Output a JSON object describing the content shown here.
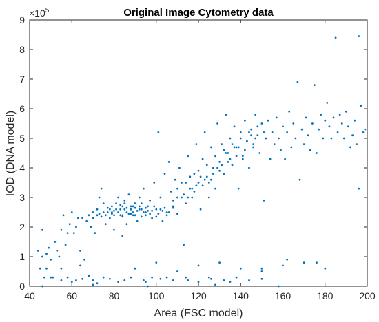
{
  "chart_data": {
    "type": "scatter",
    "title": "Original Image Cytometry data",
    "xlabel": "Area (FSC model)",
    "ylabel": "IOD (DNA model)",
    "xlim": [
      40,
      200
    ],
    "ylim": [
      0,
      900000
    ],
    "xticks": [
      40,
      60,
      80,
      100,
      120,
      140,
      160,
      180,
      200
    ],
    "yticks": [
      0,
      1,
      2,
      3,
      4,
      5,
      6,
      7,
      8,
      9
    ],
    "ytick_multiplier": "×10",
    "ytick_exponent": "5",
    "grid": false,
    "marker_color": "#0072BD",
    "series": [
      {
        "points": [
          [
            44,
            120000
          ],
          [
            45,
            60000
          ],
          [
            46,
            100000
          ],
          [
            46,
            190000
          ],
          [
            47,
            30000
          ],
          [
            48,
            110000
          ],
          [
            48,
            60000
          ],
          [
            49,
            130000
          ],
          [
            50,
            90000
          ],
          [
            51,
            30000
          ],
          [
            52,
            150000
          ],
          [
            53,
            120000
          ],
          [
            54,
            100000
          ],
          [
            55,
            60000
          ],
          [
            55,
            190000
          ],
          [
            56,
            240000
          ],
          [
            57,
            140000
          ],
          [
            58,
            180000
          ],
          [
            59,
            210000
          ],
          [
            60,
            250000
          ],
          [
            61,
            180000
          ],
          [
            62,
            200000
          ],
          [
            63,
            230000
          ],
          [
            64,
            120000
          ],
          [
            65,
            230000
          ],
          [
            66,
            90000
          ],
          [
            67,
            220000
          ],
          [
            68,
            240000
          ],
          [
            69,
            200000
          ],
          [
            70,
            230000
          ],
          [
            71,
            180000
          ],
          [
            72,
            260000
          ],
          [
            73,
            300000
          ],
          [
            74,
            330000
          ],
          [
            75,
            280000
          ],
          [
            76,
            210000
          ],
          [
            77,
            250000
          ],
          [
            78,
            230000
          ],
          [
            79,
            270000
          ],
          [
            80,
            190000
          ],
          [
            81,
            280000
          ],
          [
            82,
            300000
          ],
          [
            83,
            260000
          ],
          [
            84,
            240000
          ],
          [
            85,
            290000
          ],
          [
            86,
            210000
          ],
          [
            87,
            310000
          ],
          [
            88,
            270000
          ],
          [
            89,
            250000
          ],
          [
            90,
            280000
          ],
          [
            91,
            220000
          ],
          [
            92,
            300000
          ],
          [
            93,
            260000
          ],
          [
            94,
            330000
          ],
          [
            95,
            240000
          ],
          [
            96,
            270000
          ],
          [
            97,
            290000
          ],
          [
            98,
            230000
          ],
          [
            99,
            350000
          ],
          [
            100,
            260000
          ],
          [
            101,
            520000
          ],
          [
            102,
            300000
          ],
          [
            103,
            220000
          ],
          [
            104,
            380000
          ],
          [
            105,
            250000
          ],
          [
            106,
            420000
          ],
          [
            107,
            320000
          ],
          [
            108,
            270000
          ],
          [
            109,
            360000
          ],
          [
            110,
            300000
          ],
          [
            111,
            400000
          ],
          [
            112,
            350000
          ],
          [
            113,
            140000
          ],
          [
            114,
            280000
          ],
          [
            115,
            440000
          ],
          [
            116,
            330000
          ],
          [
            117,
            300000
          ],
          [
            118,
            380000
          ],
          [
            119,
            480000
          ],
          [
            120,
            350000
          ],
          [
            121,
            260000
          ],
          [
            122,
            430000
          ],
          [
            123,
            520000
          ],
          [
            124,
            370000
          ],
          [
            125,
            300000
          ],
          [
            126,
            470000
          ],
          [
            127,
            400000
          ],
          [
            128,
            330000
          ],
          [
            129,
            550000
          ],
          [
            130,
            420000
          ],
          [
            131,
            480000
          ],
          [
            132,
            380000
          ],
          [
            133,
            580000
          ],
          [
            134,
            450000
          ],
          [
            135,
            500000
          ],
          [
            136,
            410000
          ],
          [
            137,
            540000
          ],
          [
            138,
            470000
          ],
          [
            139,
            330000
          ],
          [
            140,
            520000
          ],
          [
            141,
            440000
          ],
          [
            142,
            560000
          ],
          [
            143,
            490000
          ],
          [
            144,
            400000
          ],
          [
            145,
            530000
          ],
          [
            146,
            470000
          ],
          [
            147,
            580000
          ],
          [
            148,
            510000
          ],
          [
            149,
            450000
          ],
          [
            150,
            550000
          ],
          [
            151,
            290000
          ],
          [
            152,
            500000
          ],
          [
            153,
            560000
          ],
          [
            154,
            430000
          ],
          [
            155,
            520000
          ],
          [
            156,
            480000
          ],
          [
            157,
            570000
          ],
          [
            158,
            500000
          ],
          [
            159,
            460000
          ],
          [
            160,
            540000
          ],
          [
            161,
            430000
          ],
          [
            162,
            520000
          ],
          [
            163,
            590000
          ],
          [
            164,
            470000
          ],
          [
            165,
            550000
          ],
          [
            166,
            500000
          ],
          [
            167,
            690000
          ],
          [
            168,
            360000
          ],
          [
            169,
            530000
          ],
          [
            170,
            480000
          ],
          [
            171,
            570000
          ],
          [
            172,
            510000
          ],
          [
            173,
            460000
          ],
          [
            174,
            550000
          ],
          [
            175,
            680000
          ],
          [
            176,
            450000
          ],
          [
            177,
            530000
          ],
          [
            178,
            580000
          ],
          [
            179,
            500000
          ],
          [
            180,
            560000
          ],
          [
            181,
            620000
          ],
          [
            182,
            540000
          ],
          [
            183,
            500000
          ],
          [
            184,
            570000
          ],
          [
            185,
            840000
          ],
          [
            186,
            520000
          ],
          [
            187,
            580000
          ],
          [
            188,
            550000
          ],
          [
            189,
            500000
          ],
          [
            190,
            590000
          ],
          [
            191,
            540000
          ],
          [
            192,
            470000
          ],
          [
            193,
            510000
          ],
          [
            194,
            560000
          ],
          [
            195,
            480000
          ],
          [
            196,
            330000
          ],
          [
            196,
            845000
          ],
          [
            197,
            610000
          ],
          [
            198,
            520000
          ],
          [
            199,
            530000
          ],
          [
            75,
            250000
          ],
          [
            78,
            260000
          ],
          [
            80,
            240000
          ],
          [
            82,
            250000
          ],
          [
            84,
            270000
          ],
          [
            86,
            250000
          ],
          [
            88,
            260000
          ],
          [
            90,
            240000
          ],
          [
            92,
            260000
          ],
          [
            94,
            250000
          ],
          [
            76,
            240000
          ],
          [
            79,
            250000
          ],
          [
            81,
            260000
          ],
          [
            83,
            240000
          ],
          [
            85,
            260000
          ],
          [
            87,
            245000
          ],
          [
            89,
            270000
          ],
          [
            91,
            255000
          ],
          [
            93,
            235000
          ],
          [
            95,
            265000
          ],
          [
            77,
            265000
          ],
          [
            80,
            255000
          ],
          [
            83,
            275000
          ],
          [
            86,
            265000
          ],
          [
            89,
            240000
          ],
          [
            92,
            270000
          ],
          [
            95,
            250000
          ],
          [
            98,
            255000
          ],
          [
            101,
            245000
          ],
          [
            104,
            265000
          ],
          [
            73,
            245000
          ],
          [
            74,
            235000
          ],
          [
            79,
            245000
          ],
          [
            84,
            235000
          ],
          [
            88,
            245000
          ],
          [
            93,
            280000
          ],
          [
            97,
            245000
          ],
          [
            100,
            235000
          ],
          [
            103,
            255000
          ],
          [
            106,
            250000
          ],
          [
            70,
            250000
          ],
          [
            72,
            240000
          ],
          [
            85,
            280000
          ],
          [
            90,
            265000
          ],
          [
            96,
            255000
          ],
          [
            99,
            270000
          ],
          [
            102,
            260000
          ],
          [
            105,
            240000
          ],
          [
            108,
            265000
          ],
          [
            110,
            245000
          ],
          [
            110,
            330000
          ],
          [
            112,
            300000
          ],
          [
            114,
            350000
          ],
          [
            116,
            370000
          ],
          [
            118,
            320000
          ],
          [
            120,
            390000
          ],
          [
            122,
            340000
          ],
          [
            124,
            410000
          ],
          [
            126,
            360000
          ],
          [
            128,
            440000
          ],
          [
            130,
            390000
          ],
          [
            132,
            460000
          ],
          [
            134,
            420000
          ],
          [
            136,
            480000
          ],
          [
            138,
            440000
          ],
          [
            140,
            500000
          ],
          [
            142,
            460000
          ],
          [
            144,
            520000
          ],
          [
            146,
            480000
          ],
          [
            148,
            540000
          ],
          [
            115,
            300000
          ],
          [
            119,
            340000
          ],
          [
            123,
            360000
          ],
          [
            127,
            380000
          ],
          [
            131,
            410000
          ],
          [
            135,
            430000
          ],
          [
            139,
            470000
          ],
          [
            143,
            490000
          ],
          [
            147,
            500000
          ],
          [
            151,
            520000
          ],
          [
            108,
            290000
          ],
          [
            113,
            310000
          ],
          [
            117,
            330000
          ],
          [
            121,
            370000
          ],
          [
            125,
            350000
          ],
          [
            129,
            400000
          ],
          [
            133,
            450000
          ],
          [
            137,
            470000
          ],
          [
            141,
            430000
          ],
          [
            145,
            510000
          ],
          [
            50,
            30000
          ],
          [
            55,
            20000
          ],
          [
            58,
            30000
          ],
          [
            62,
            20000
          ],
          [
            68,
            35000
          ],
          [
            72,
            10000
          ],
          [
            78,
            25000
          ],
          [
            82,
            15000
          ],
          [
            88,
            30000
          ],
          [
            94,
            20000
          ],
          [
            98,
            30000
          ],
          [
            102,
            25000
          ],
          [
            108,
            20000
          ],
          [
            114,
            30000
          ],
          [
            120,
            15000
          ],
          [
            126,
            25000
          ],
          [
            132,
            20000
          ],
          [
            138,
            30000
          ],
          [
            144,
            20000
          ],
          [
            150,
            25000
          ],
          [
            60,
            15000
          ],
          [
            65,
            25000
          ],
          [
            70,
            20000
          ],
          [
            75,
            30000
          ],
          [
            85,
            20000
          ],
          [
            95,
            15000
          ],
          [
            105,
            30000
          ],
          [
            115,
            20000
          ],
          [
            125,
            30000
          ],
          [
            135,
            15000
          ],
          [
            90,
            60000
          ],
          [
            100,
            80000
          ],
          [
            110,
            50000
          ],
          [
            120,
            70000
          ],
          [
            130,
            80000
          ],
          [
            140,
            60000
          ],
          [
            150,
            50000
          ],
          [
            160,
            70000
          ],
          [
            170,
            80000
          ],
          [
            180,
            60000
          ],
          [
            46,
            0
          ],
          [
            70,
            5000
          ],
          [
            96,
            0
          ],
          [
            128,
            5000
          ],
          [
            158,
            0
          ],
          [
            176,
            80000
          ],
          [
            150,
            60000
          ],
          [
            162,
            90000
          ],
          [
            64,
            70000
          ],
          [
            84,
            170000
          ]
        ]
      }
    ]
  }
}
